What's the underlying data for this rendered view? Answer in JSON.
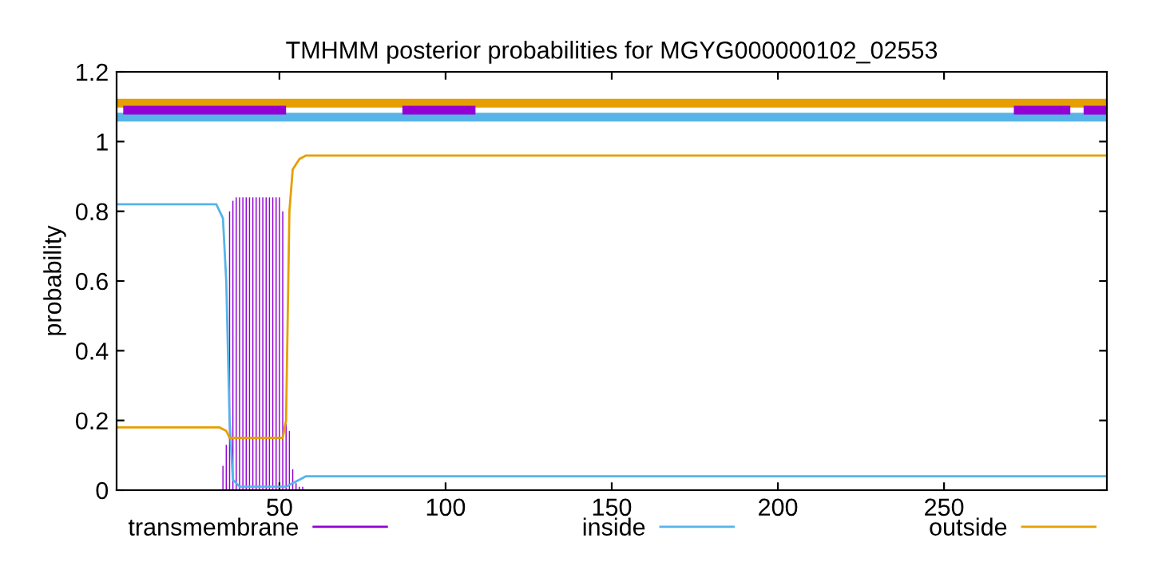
{
  "chart_data": {
    "type": "line",
    "title": "TMHMM posterior probabilities for MGYG000000102_02553",
    "ylabel": "probability",
    "xlim": [
      1,
      299
    ],
    "xticks": [
      50,
      100,
      150,
      200,
      250
    ],
    "ylim": [
      0,
      1.2
    ],
    "yticks": [
      0,
      0.2,
      0.4,
      0.6,
      0.8,
      1,
      1.2
    ],
    "grid": false,
    "legend": "bottom",
    "series": [
      {
        "name": "transmembrane",
        "type": "bar",
        "color": "#9400d3",
        "x": [
          33,
          34,
          35,
          36,
          37,
          38,
          39,
          40,
          41,
          42,
          43,
          44,
          45,
          46,
          47,
          48,
          49,
          50,
          51,
          52,
          53,
          54,
          55,
          56,
          57
        ],
        "values": [
          0.07,
          0.13,
          0.8,
          0.83,
          0.84,
          0.84,
          0.84,
          0.84,
          0.84,
          0.84,
          0.84,
          0.84,
          0.84,
          0.84,
          0.84,
          0.84,
          0.84,
          0.84,
          0.8,
          0.19,
          0.17,
          0.06,
          0.02,
          0.01,
          0.01
        ]
      },
      {
        "name": "inside",
        "color": "#56b4e9",
        "x": [
          1,
          31,
          33,
          34,
          35,
          36,
          38,
          50,
          52,
          54,
          56,
          58,
          299
        ],
        "values": [
          0.82,
          0.82,
          0.78,
          0.6,
          0.2,
          0.03,
          0.01,
          0.01,
          0.01,
          0.02,
          0.03,
          0.04,
          0.04
        ]
      },
      {
        "name": "outside",
        "color": "#e69f00",
        "x": [
          1,
          32,
          34,
          35,
          36,
          51,
          52,
          53,
          54,
          56,
          58,
          299
        ],
        "values": [
          0.18,
          0.18,
          0.17,
          0.15,
          0.15,
          0.15,
          0.2,
          0.8,
          0.92,
          0.95,
          0.96,
          0.96
        ]
      },
      {
        "color": "#e69f00",
        "x": [
          1,
          299
        ],
        "values": [
          1.11,
          1.11
        ]
      },
      {
        "color": "#56b4e9",
        "x": [
          1,
          299
        ],
        "values": [
          1.07,
          1.07
        ]
      },
      {
        "color": "#9400d3",
        "x": [
          3,
          52
        ],
        "values": [
          1.09,
          1.09
        ]
      },
      {
        "color": "#9400d3",
        "x": [
          87,
          109
        ],
        "values": [
          1.09,
          1.09
        ]
      },
      {
        "color": "#9400d3",
        "x": [
          271,
          288
        ],
        "values": [
          1.09,
          1.09
        ]
      },
      {
        "color": "#9400d3",
        "x": [
          292,
          299
        ],
        "values": [
          1.09,
          1.09
        ]
      }
    ]
  }
}
